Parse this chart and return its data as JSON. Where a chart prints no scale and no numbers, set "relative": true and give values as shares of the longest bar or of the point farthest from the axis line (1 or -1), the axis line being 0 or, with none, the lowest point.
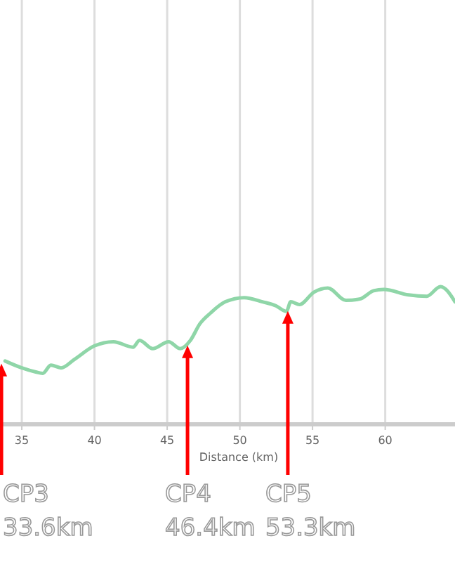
{
  "chart_data": {
    "type": "line",
    "relative": true,
    "xlabel": "Distance (km)",
    "xlim": [
      33.5,
      64.8
    ],
    "xticks": [
      35,
      40,
      45,
      50,
      55,
      60
    ],
    "grid": "x",
    "marker": "none",
    "line_style": "solid",
    "x": [
      33.85,
      35,
      35.96,
      36.44,
      37.0,
      37.7,
      38.6,
      40,
      41.3,
      42.65,
      43.1,
      44.0,
      45.1,
      45.9,
      46.6,
      47.25,
      48.0,
      49.0,
      50.3,
      51.55,
      52.5,
      53.2,
      53.5,
      54.1,
      55.1,
      56.05,
      57.3,
      58.25,
      59.2,
      59.9,
      61.6,
      62.85,
      63.8,
      64.8
    ],
    "series": [
      {
        "color": "#8fd6a8",
        "values": [
          0.46,
          0.41,
          0.38,
          0.37,
          0.43,
          0.41,
          0.47,
          0.57,
          0.6,
          0.56,
          0.61,
          0.55,
          0.6,
          0.55,
          0.61,
          0.73,
          0.81,
          0.89,
          0.92,
          0.89,
          0.86,
          0.82,
          0.89,
          0.87,
          0.96,
          0.99,
          0.9,
          0.91,
          0.97,
          0.98,
          0.94,
          0.93,
          1,
          0.89
        ]
      }
    ],
    "ref_lines": [
      {
        "axis": "x",
        "value": 33.6,
        "label": "CP3\n33.6km",
        "color": "#ff0000"
      },
      {
        "axis": "x",
        "value": 46.4,
        "label": "CP4\n46.4km",
        "color": "#ff0000"
      },
      {
        "axis": "x",
        "value": 53.3,
        "label": "CP5\n53.3km",
        "color": "#ff0000"
      }
    ]
  }
}
